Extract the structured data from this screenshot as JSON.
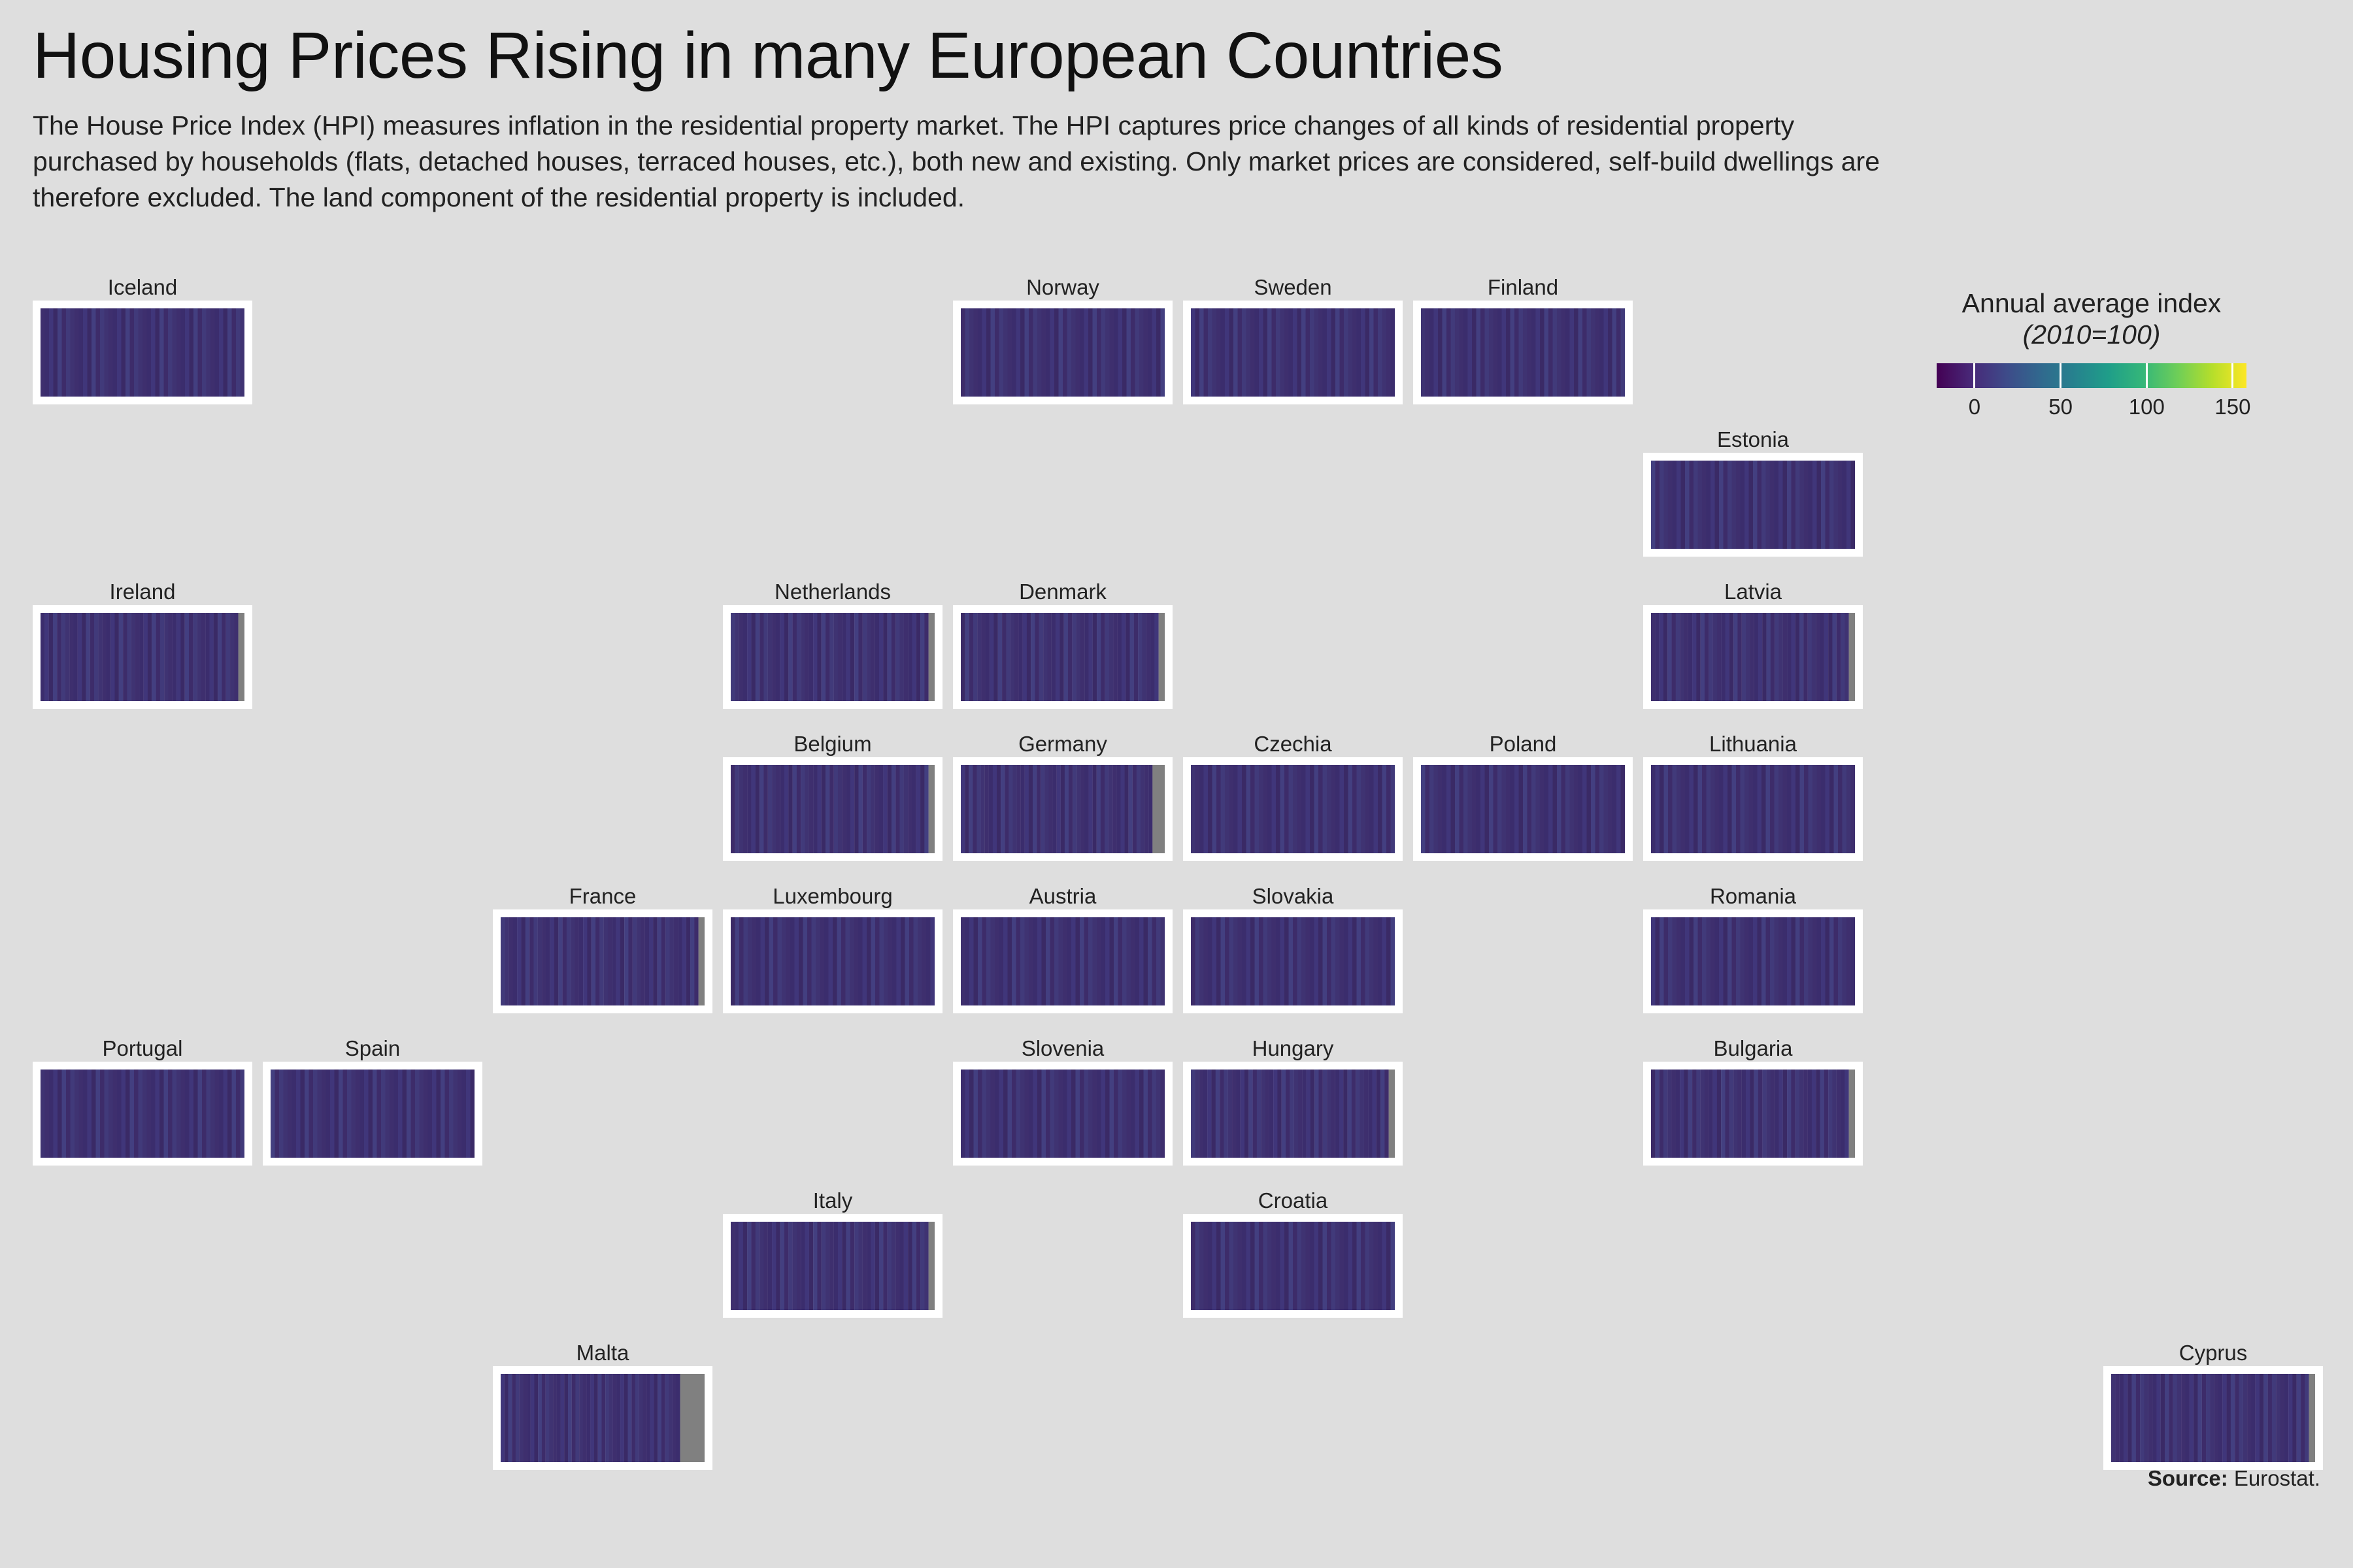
{
  "title": "Housing Prices Rising in many European Countries",
  "subtitle": "The House Price Index (HPI) measures inflation in the residential property market. The HPI captures price changes of all kinds of residential property purchased by households (flats, detached houses, terraced houses, etc.), both new and existing. Only market prices are considered, self-build dwellings are therefore excluded. The land component of the residential property is included.",
  "source_label": "Source:",
  "source_text": "Eurostat.",
  "legend": {
    "title": "Annual average index",
    "subtitle": "(2010=100)",
    "ticks": [
      "0",
      "50",
      "100",
      "150"
    ],
    "tick_values": [
      0,
      50,
      100,
      150
    ],
    "range": [
      -22,
      158
    ],
    "colors": [
      "#440154",
      "#482878",
      "#3e4a89",
      "#31688e",
      "#26828e",
      "#1f9e89",
      "#35b779",
      "#6ece58",
      "#b5de2b",
      "#fde725"
    ]
  },
  "chart_data": {
    "type": "heatmap",
    "layout": "tile grid map",
    "missing_color": "#808080",
    "countries": [
      {
        "name": "Iceland",
        "col": 0,
        "row": 0,
        "missing_fraction": 0.0
      },
      {
        "name": "Norway",
        "col": 4,
        "row": 0,
        "missing_fraction": 0.0
      },
      {
        "name": "Sweden",
        "col": 5,
        "row": 0,
        "missing_fraction": 0.0
      },
      {
        "name": "Finland",
        "col": 6,
        "row": 0,
        "missing_fraction": 0.0
      },
      {
        "name": "Estonia",
        "col": 7,
        "row": 1,
        "missing_fraction": 0.0
      },
      {
        "name": "Ireland",
        "col": 0,
        "row": 2,
        "missing_fraction": 0.03
      },
      {
        "name": "Netherlands",
        "col": 3,
        "row": 2,
        "missing_fraction": 0.03
      },
      {
        "name": "Denmark",
        "col": 4,
        "row": 2,
        "missing_fraction": 0.03
      },
      {
        "name": "Latvia",
        "col": 7,
        "row": 2,
        "missing_fraction": 0.03
      },
      {
        "name": "Belgium",
        "col": 3,
        "row": 3,
        "missing_fraction": 0.03
      },
      {
        "name": "Germany",
        "col": 4,
        "row": 3,
        "missing_fraction": 0.06
      },
      {
        "name": "Czechia",
        "col": 5,
        "row": 3,
        "missing_fraction": 0.0
      },
      {
        "name": "Poland",
        "col": 6,
        "row": 3,
        "missing_fraction": 0.0
      },
      {
        "name": "Lithuania",
        "col": 7,
        "row": 3,
        "missing_fraction": 0.0
      },
      {
        "name": "France",
        "col": 2,
        "row": 4,
        "missing_fraction": 0.03
      },
      {
        "name": "Luxembourg",
        "col": 3,
        "row": 4,
        "missing_fraction": 0.0
      },
      {
        "name": "Austria",
        "col": 4,
        "row": 4,
        "missing_fraction": 0.0
      },
      {
        "name": "Slovakia",
        "col": 5,
        "row": 4,
        "missing_fraction": 0.0
      },
      {
        "name": "Romania",
        "col": 7,
        "row": 4,
        "missing_fraction": 0.0
      },
      {
        "name": "Portugal",
        "col": 0,
        "row": 5,
        "missing_fraction": 0.0
      },
      {
        "name": "Spain",
        "col": 1,
        "row": 5,
        "missing_fraction": 0.0
      },
      {
        "name": "Slovenia",
        "col": 4,
        "row": 5,
        "missing_fraction": 0.0
      },
      {
        "name": "Hungary",
        "col": 5,
        "row": 5,
        "missing_fraction": 0.03
      },
      {
        "name": "Bulgaria",
        "col": 7,
        "row": 5,
        "missing_fraction": 0.03
      },
      {
        "name": "Italy",
        "col": 3,
        "row": 6,
        "missing_fraction": 0.03
      },
      {
        "name": "Croatia",
        "col": 5,
        "row": 6,
        "missing_fraction": 0.0
      },
      {
        "name": "Malta",
        "col": 2,
        "row": 7,
        "missing_fraction": 0.12
      },
      {
        "name": "Cyprus",
        "col": 9,
        "row": 7,
        "missing_fraction": 0.03
      }
    ]
  }
}
